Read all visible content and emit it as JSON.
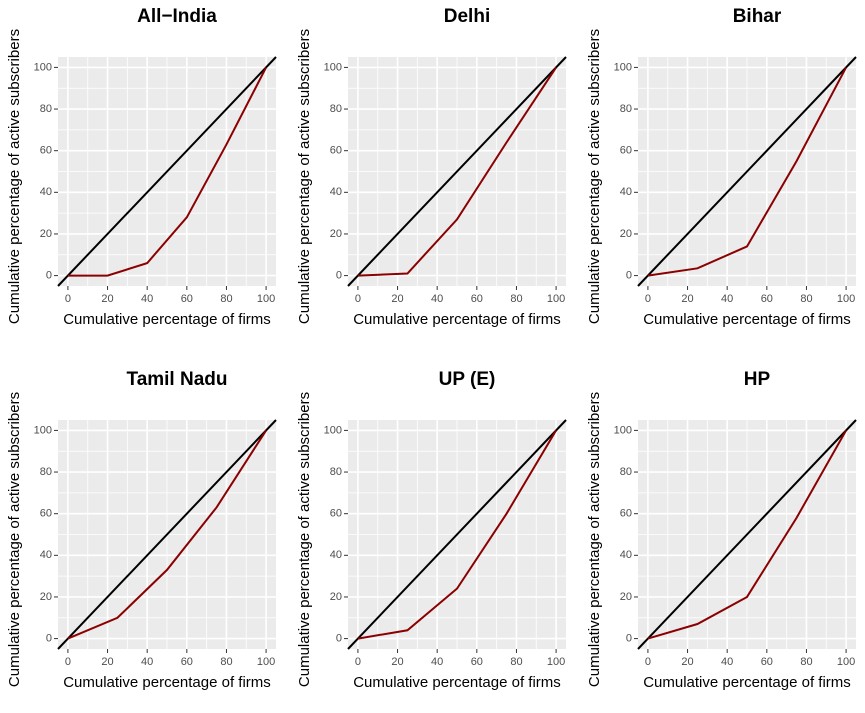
{
  "chart_data": [
    {
      "type": "line",
      "title": "All−India",
      "xlabel": "Cumulative percentage of firms",
      "ylabel": "Cumulative percentage of active subscribers",
      "x": [
        0,
        20,
        40,
        60,
        80,
        100
      ],
      "series": [
        {
          "color": "#8b0000",
          "values": [
            0,
            0,
            6,
            28,
            63,
            100
          ]
        }
      ],
      "diagonal": true,
      "diagonal_color": "#000000",
      "xlim": [
        -5,
        105
      ],
      "ylim": [
        -5,
        105
      ],
      "xticks": [
        0,
        20,
        40,
        60,
        80,
        100
      ],
      "yticks": [
        0,
        20,
        40,
        60,
        80,
        100
      ],
      "grid": true
    },
    {
      "type": "line",
      "title": "Delhi",
      "xlabel": "Cumulative percentage of firms",
      "ylabel": "Cumulative percentage of active subscribers",
      "x": [
        0,
        25,
        50,
        75,
        100
      ],
      "series": [
        {
          "color": "#8b0000",
          "values": [
            0,
            1,
            27,
            64,
            100
          ]
        }
      ],
      "diagonal": true,
      "diagonal_color": "#000000",
      "xlim": [
        -5,
        105
      ],
      "ylim": [
        -5,
        105
      ],
      "xticks": [
        0,
        20,
        40,
        60,
        80,
        100
      ],
      "yticks": [
        0,
        20,
        40,
        60,
        80,
        100
      ],
      "grid": true
    },
    {
      "type": "line",
      "title": "Bihar",
      "xlabel": "Cumulative percentage of firms",
      "ylabel": "Cumulative percentage of active subscribers",
      "x": [
        0,
        25,
        50,
        75,
        100
      ],
      "series": [
        {
          "color": "#8b0000",
          "values": [
            0,
            3.5,
            14,
            55,
            100
          ]
        }
      ],
      "diagonal": true,
      "diagonal_color": "#000000",
      "xlim": [
        -5,
        105
      ],
      "ylim": [
        -5,
        105
      ],
      "xticks": [
        0,
        20,
        40,
        60,
        80,
        100
      ],
      "yticks": [
        0,
        20,
        40,
        60,
        80,
        100
      ],
      "grid": true
    },
    {
      "type": "line",
      "title": "Tamil Nadu",
      "xlabel": "Cumulative percentage of firms",
      "ylabel": "Cumulative percentage of active subscribers",
      "x": [
        0,
        25,
        50,
        75,
        100
      ],
      "series": [
        {
          "color": "#8b0000",
          "values": [
            0,
            10,
            33,
            63,
            100
          ]
        }
      ],
      "diagonal": true,
      "diagonal_color": "#000000",
      "xlim": [
        -5,
        105
      ],
      "ylim": [
        -5,
        105
      ],
      "xticks": [
        0,
        20,
        40,
        60,
        80,
        100
      ],
      "yticks": [
        0,
        20,
        40,
        60,
        80,
        100
      ],
      "grid": true
    },
    {
      "type": "line",
      "title": "UP (E)",
      "xlabel": "Cumulative percentage of firms",
      "ylabel": "Cumulative percentage of active subscribers",
      "x": [
        0,
        25,
        50,
        75,
        100
      ],
      "series": [
        {
          "color": "#8b0000",
          "values": [
            0,
            4,
            24,
            60,
            100
          ]
        }
      ],
      "diagonal": true,
      "diagonal_color": "#000000",
      "xlim": [
        -5,
        105
      ],
      "ylim": [
        -5,
        105
      ],
      "xticks": [
        0,
        20,
        40,
        60,
        80,
        100
      ],
      "yticks": [
        0,
        20,
        40,
        60,
        80,
        100
      ],
      "grid": true
    },
    {
      "type": "line",
      "title": "HP",
      "xlabel": "Cumulative percentage of firms",
      "ylabel": "Cumulative percentage of active subscribers",
      "x": [
        0,
        25,
        50,
        75,
        100
      ],
      "series": [
        {
          "color": "#8b0000",
          "values": [
            0,
            7,
            20,
            58,
            100
          ]
        }
      ],
      "diagonal": true,
      "diagonal_color": "#000000",
      "xlim": [
        -5,
        105
      ],
      "ylim": [
        -5,
        105
      ],
      "xticks": [
        0,
        20,
        40,
        60,
        80,
        100
      ],
      "yticks": [
        0,
        20,
        40,
        60,
        80,
        100
      ],
      "grid": true
    }
  ]
}
